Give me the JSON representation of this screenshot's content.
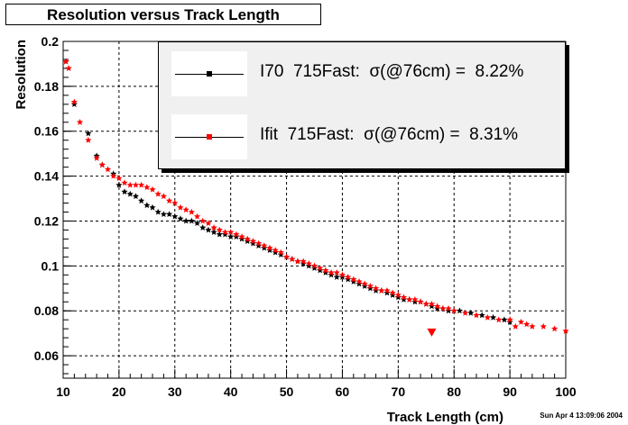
{
  "chart_data": {
    "type": "scatter",
    "title": "Resolution versus Track Length",
    "xlabel": "Track Length (cm)",
    "ylabel": "Resolution",
    "xlim": [
      10,
      100
    ],
    "ylim": [
      0.05,
      0.2
    ],
    "x_ticks": [
      "10",
      "20",
      "30",
      "40",
      "50",
      "60",
      "70",
      "80",
      "90",
      "100"
    ],
    "y_ticks": [
      "0.06",
      "0.08",
      "0.1",
      "0.12",
      "0.14",
      "0.16",
      "0.18",
      "0.2"
    ],
    "grid": true,
    "legend_position": "top-right",
    "series": [
      {
        "name": "I70  715Fast:  σ(@76cm) =  8.22%",
        "color": "#000000",
        "points": [
          [
            10.5,
            0.191
          ],
          [
            12,
            0.172
          ],
          [
            14.5,
            0.159
          ],
          [
            16,
            0.149
          ],
          [
            17,
            0.145
          ],
          [
            19,
            0.141
          ],
          [
            20,
            0.136
          ],
          [
            21,
            0.133
          ],
          [
            22,
            0.132
          ],
          [
            23,
            0.131
          ],
          [
            24,
            0.129
          ],
          [
            25,
            0.127
          ],
          [
            26,
            0.126
          ],
          [
            27,
            0.124
          ],
          [
            28,
            0.123
          ],
          [
            29,
            0.123
          ],
          [
            30,
            0.122
          ],
          [
            31,
            0.121
          ],
          [
            32,
            0.12
          ],
          [
            33,
            0.12
          ],
          [
            34,
            0.119
          ],
          [
            35,
            0.117
          ],
          [
            36,
            0.116
          ],
          [
            37,
            0.115
          ],
          [
            38,
            0.114
          ],
          [
            39,
            0.114
          ],
          [
            40,
            0.113
          ],
          [
            41,
            0.113
          ],
          [
            42,
            0.112
          ],
          [
            43,
            0.111
          ],
          [
            44,
            0.11
          ],
          [
            45,
            0.109
          ],
          [
            46,
            0.108
          ],
          [
            47,
            0.107
          ],
          [
            48,
            0.106
          ],
          [
            49,
            0.105
          ],
          [
            50,
            0.104
          ],
          [
            51,
            0.103
          ],
          [
            52,
            0.102
          ],
          [
            53,
            0.101
          ],
          [
            54,
            0.1
          ],
          [
            55,
            0.099
          ],
          [
            56,
            0.098
          ],
          [
            57,
            0.097
          ],
          [
            58,
            0.096
          ],
          [
            59,
            0.095
          ],
          [
            60,
            0.095
          ],
          [
            61,
            0.094
          ],
          [
            62,
            0.093
          ],
          [
            63,
            0.092
          ],
          [
            64,
            0.091
          ],
          [
            65,
            0.09
          ],
          [
            66,
            0.089
          ],
          [
            67,
            0.089
          ],
          [
            68,
            0.088
          ],
          [
            69,
            0.087
          ],
          [
            70,
            0.086
          ],
          [
            71,
            0.085
          ],
          [
            72,
            0.085
          ],
          [
            73,
            0.084
          ],
          [
            74,
            0.084
          ],
          [
            75,
            0.083
          ],
          [
            76,
            0.082
          ],
          [
            77,
            0.081
          ],
          [
            78,
            0.081
          ],
          [
            79,
            0.08
          ],
          [
            80,
            0.08
          ],
          [
            81,
            0.08
          ],
          [
            83,
            0.079
          ],
          [
            85,
            0.078
          ],
          [
            87,
            0.077
          ],
          [
            89,
            0.076
          ],
          [
            90,
            0.075
          ]
        ]
      },
      {
        "name": "Ifit  715Fast:  σ(@76cm) =  8.31%",
        "color": "#ff0000",
        "points": [
          [
            10.5,
            0.191
          ],
          [
            11,
            0.188
          ],
          [
            12,
            0.173
          ],
          [
            13,
            0.164
          ],
          [
            14.5,
            0.156
          ],
          [
            16,
            0.148
          ],
          [
            17,
            0.145
          ],
          [
            18,
            0.143
          ],
          [
            19,
            0.14
          ],
          [
            20,
            0.139
          ],
          [
            21,
            0.137
          ],
          [
            22,
            0.136
          ],
          [
            23,
            0.136
          ],
          [
            24,
            0.136
          ],
          [
            25,
            0.135
          ],
          [
            26,
            0.134
          ],
          [
            27,
            0.132
          ],
          [
            28,
            0.131
          ],
          [
            29,
            0.129
          ],
          [
            30,
            0.128
          ],
          [
            31,
            0.126
          ],
          [
            32,
            0.125
          ],
          [
            33,
            0.124
          ],
          [
            34,
            0.122
          ],
          [
            35,
            0.12
          ],
          [
            36,
            0.119
          ],
          [
            37,
            0.117
          ],
          [
            38,
            0.116
          ],
          [
            39,
            0.115
          ],
          [
            40,
            0.115
          ],
          [
            41,
            0.114
          ],
          [
            42,
            0.113
          ],
          [
            43,
            0.112
          ],
          [
            44,
            0.111
          ],
          [
            45,
            0.11
          ],
          [
            46,
            0.109
          ],
          [
            47,
            0.108
          ],
          [
            48,
            0.107
          ],
          [
            49,
            0.106
          ],
          [
            50,
            0.104
          ],
          [
            51,
            0.103
          ],
          [
            52,
            0.102
          ],
          [
            53,
            0.102
          ],
          [
            54,
            0.101
          ],
          [
            55,
            0.1
          ],
          [
            56,
            0.099
          ],
          [
            57,
            0.098
          ],
          [
            58,
            0.097
          ],
          [
            59,
            0.097
          ],
          [
            60,
            0.096
          ],
          [
            61,
            0.095
          ],
          [
            62,
            0.094
          ],
          [
            63,
            0.093
          ],
          [
            64,
            0.092
          ],
          [
            65,
            0.091
          ],
          [
            66,
            0.09
          ],
          [
            67,
            0.089
          ],
          [
            68,
            0.089
          ],
          [
            69,
            0.088
          ],
          [
            70,
            0.087
          ],
          [
            71,
            0.086
          ],
          [
            72,
            0.085
          ],
          [
            73,
            0.085
          ],
          [
            74,
            0.084
          ],
          [
            75,
            0.083
          ],
          [
            76,
            0.083
          ],
          [
            77,
            0.082
          ],
          [
            78,
            0.081
          ],
          [
            79,
            0.081
          ],
          [
            80,
            0.08
          ],
          [
            82,
            0.079
          ],
          [
            84,
            0.078
          ],
          [
            86,
            0.077
          ],
          [
            88,
            0.076
          ],
          [
            90,
            0.076
          ],
          [
            91,
            0.073
          ],
          [
            92,
            0.075
          ],
          [
            93,
            0.074
          ],
          [
            94,
            0.073
          ],
          [
            96,
            0.073
          ],
          [
            98,
            0.072
          ],
          [
            100,
            0.071
          ]
        ]
      }
    ],
    "annotations": [
      {
        "marker": "triangle-down",
        "color": "#ff0000",
        "x": 76,
        "y": 0.0705
      }
    ]
  },
  "date_stamp": "Sun Apr  4 13:09:06 2004"
}
